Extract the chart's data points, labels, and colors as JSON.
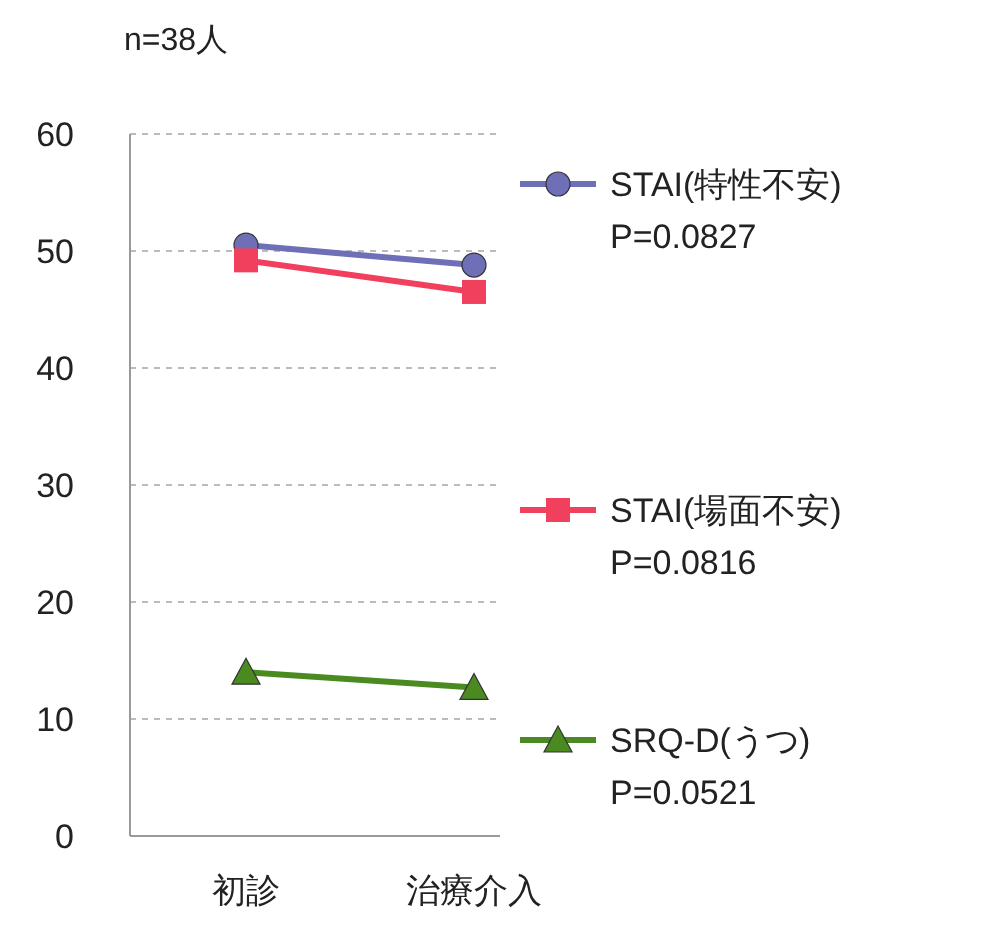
{
  "chart_data": {
    "type": "line",
    "title": "n=38人",
    "categories": [
      "初診",
      "治療介入"
    ],
    "series": [
      {
        "name": "STAI(特性不安)",
        "color": "#6f6fb8",
        "marker": "circle",
        "values": [
          50.5,
          48.8
        ]
      },
      {
        "name": "STAI(場面不安)",
        "color": "#f0405e",
        "marker": "square",
        "values": [
          49.2,
          46.5
        ]
      },
      {
        "name": "SRQ-D(うつ)",
        "color": "#4a8a20",
        "marker": "triangle",
        "values": [
          14,
          12.7
        ]
      }
    ],
    "annotations": [
      "P=0.0827",
      "P=0.0816",
      "P=0.0521"
    ],
    "ylim": [
      0,
      60
    ],
    "yticks": [
      0,
      10,
      20,
      30,
      40,
      50,
      60
    ],
    "grid": "y",
    "legend": "right"
  }
}
